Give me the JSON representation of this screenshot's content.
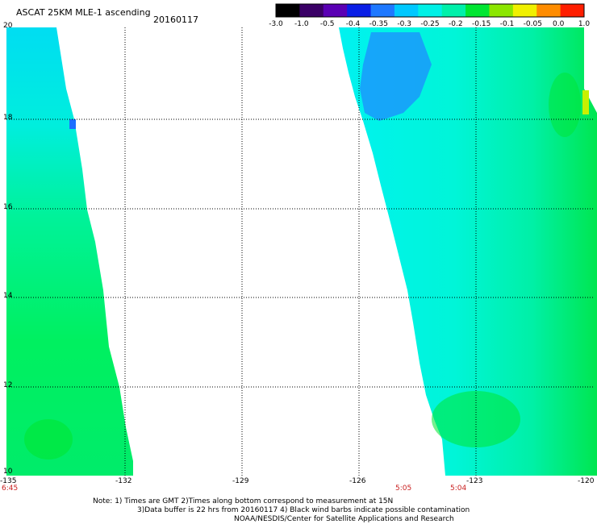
{
  "header": {
    "title": "ASCAT 25KM MLE-1 ascending",
    "date": "20160117"
  },
  "colorbar": {
    "labels": [
      "-3.0",
      "-1.0",
      "-0.5",
      "-0.4",
      "-0.35",
      "-0.3",
      "-0.25",
      "-0.2",
      "-0.15",
      "-0.1",
      "-0.05",
      "0.0",
      "1.0"
    ],
    "colors": [
      "#000000",
      "#3a0066",
      "#5a00b4",
      "#0a1ee6",
      "#1e78ff",
      "#00c8ff",
      "#00f0e6",
      "#00f0aa",
      "#00e632",
      "#8ce600",
      "#f0f000",
      "#ff8c00",
      "#ff1e00"
    ]
  },
  "map": {
    "lat_labels": [
      "20",
      "18",
      "16",
      "14",
      "12",
      "10"
    ],
    "lon_labels": [
      "-135",
      "-132",
      "-129",
      "-126",
      "-123",
      "-120"
    ],
    "lat_range": [
      10,
      20
    ],
    "lon_range": [
      -135,
      -120
    ],
    "grid": "dotted",
    "swath_colors": {
      "cyan": "#00ffe6",
      "lightblue": "#00d2ff",
      "blue": "#1e6eff",
      "green": "#00f050",
      "teal": "#00f0aa"
    }
  },
  "times": [
    {
      "label": "6:45",
      "lon": -135
    },
    {
      "label": "5:05",
      "lon": -124.9
    },
    {
      "label": "5:04",
      "lon": -123.7
    }
  ],
  "notes": {
    "line1": "Note: 1) Times are GMT 2)Times along bottom correspond to measurement at 15N",
    "line2": "3)Data buffer is 22 hrs from 20160117 4) Black wind barbs indicate possible contamination",
    "line3": "NOAA/NESDIS/Center for Satellite Applications and Research"
  }
}
